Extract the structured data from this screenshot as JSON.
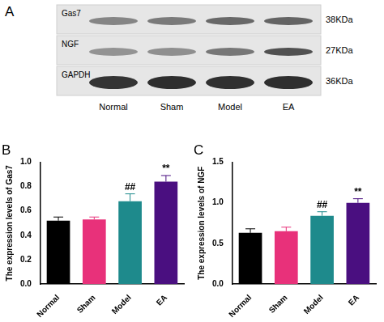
{
  "blot": {
    "panel": "A",
    "rows": [
      {
        "label": "Gas7",
        "size": "38KDa"
      },
      {
        "label": "NGF",
        "size": "27KDa"
      },
      {
        "label": "GAPDH",
        "size": "36KDa"
      }
    ],
    "lanes": [
      "Normal",
      "Sham",
      "Model",
      "EA"
    ]
  },
  "chart_data": [
    {
      "type": "bar",
      "title": "B",
      "y_label": "The expression levels of Gas7",
      "categories": [
        "Normal",
        "Sham",
        "Model",
        "EA"
      ],
      "values": [
        0.52,
        0.53,
        0.68,
        0.84
      ],
      "errors": [
        0.03,
        0.02,
        0.06,
        0.05
      ],
      "colors": [
        "#000000",
        "#e8317a",
        "#1e8a8c",
        "#4a0f80"
      ],
      "ylim": [
        0,
        1.0
      ],
      "yticks": [
        {
          "value": 0,
          "label": "0.0"
        },
        0.2,
        0.4,
        0.6,
        0.8,
        {
          "value": 1.0,
          "label": "1.0"
        }
      ],
      "grid": false,
      "annotations": [
        {
          "category": "Model",
          "text": "##"
        },
        {
          "category": "EA",
          "text": "**"
        }
      ]
    },
    {
      "type": "bar",
      "title": "C",
      "y_label": "The expression levels of NGF",
      "categories": [
        "Normal",
        "Sham",
        "Model",
        "EA"
      ],
      "values": [
        0.63,
        0.65,
        0.84,
        1.0
      ],
      "errors": [
        0.05,
        0.05,
        0.05,
        0.05
      ],
      "colors": [
        "#000000",
        "#e8317a",
        "#1e8a8c",
        "#4a0f80"
      ],
      "ylim": [
        0,
        1.5
      ],
      "yticks": [
        {
          "value": 0,
          "label": "0.0"
        },
        0.5,
        {
          "value": 1.0,
          "label": "1.0"
        },
        1.5
      ],
      "grid": false,
      "annotations": [
        {
          "category": "Model",
          "text": "##"
        },
        {
          "category": "EA",
          "text": "**"
        }
      ]
    }
  ]
}
